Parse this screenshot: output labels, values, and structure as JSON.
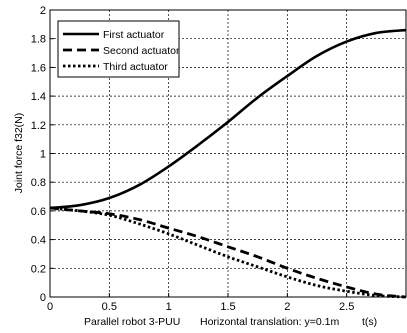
{
  "chart_data": {
    "type": "line",
    "ylabel": "Joint force f32(N)",
    "xlabel_left": "Parallel robot 3-PUU",
    "xlabel_right": "Horizontal translation: y=0.1m",
    "xunit": "t(s)",
    "xlim": [
      0,
      3
    ],
    "ylim": [
      0,
      2
    ],
    "xticks": [
      0,
      0.5,
      1,
      1.5,
      2,
      2.5
    ],
    "xtick_labels": [
      "0",
      "0.5",
      "1",
      "1.5",
      "2",
      "2.5"
    ],
    "yticks": [
      0,
      0.2,
      0.4,
      0.6,
      0.8,
      1,
      1.2,
      1.4,
      1.6,
      1.8,
      2
    ],
    "ytick_labels": [
      "0",
      "0.2",
      "0.4",
      "0.6",
      "0.8",
      "1",
      "1.2",
      "1.4",
      "1.6",
      "1.8",
      "2"
    ],
    "grid": true,
    "legend_position": "top-left",
    "x": [
      0,
      0.25,
      0.5,
      0.75,
      1,
      1.25,
      1.5,
      1.75,
      2,
      2.25,
      2.5,
      2.75,
      3
    ],
    "series": [
      {
        "name": "First actuator",
        "style": "solid",
        "values": [
          0.62,
          0.64,
          0.69,
          0.78,
          0.91,
          1.06,
          1.22,
          1.39,
          1.54,
          1.68,
          1.78,
          1.84,
          1.86
        ]
      },
      {
        "name": "Second actuator",
        "style": "dashed",
        "values": [
          0.62,
          0.6,
          0.58,
          0.54,
          0.48,
          0.42,
          0.35,
          0.28,
          0.2,
          0.13,
          0.07,
          0.02,
          0.0
        ]
      },
      {
        "name": "Third actuator",
        "style": "dotted",
        "values": [
          0.62,
          0.6,
          0.57,
          0.51,
          0.44,
          0.36,
          0.28,
          0.21,
          0.14,
          0.08,
          0.04,
          0.01,
          0.0
        ]
      }
    ]
  }
}
